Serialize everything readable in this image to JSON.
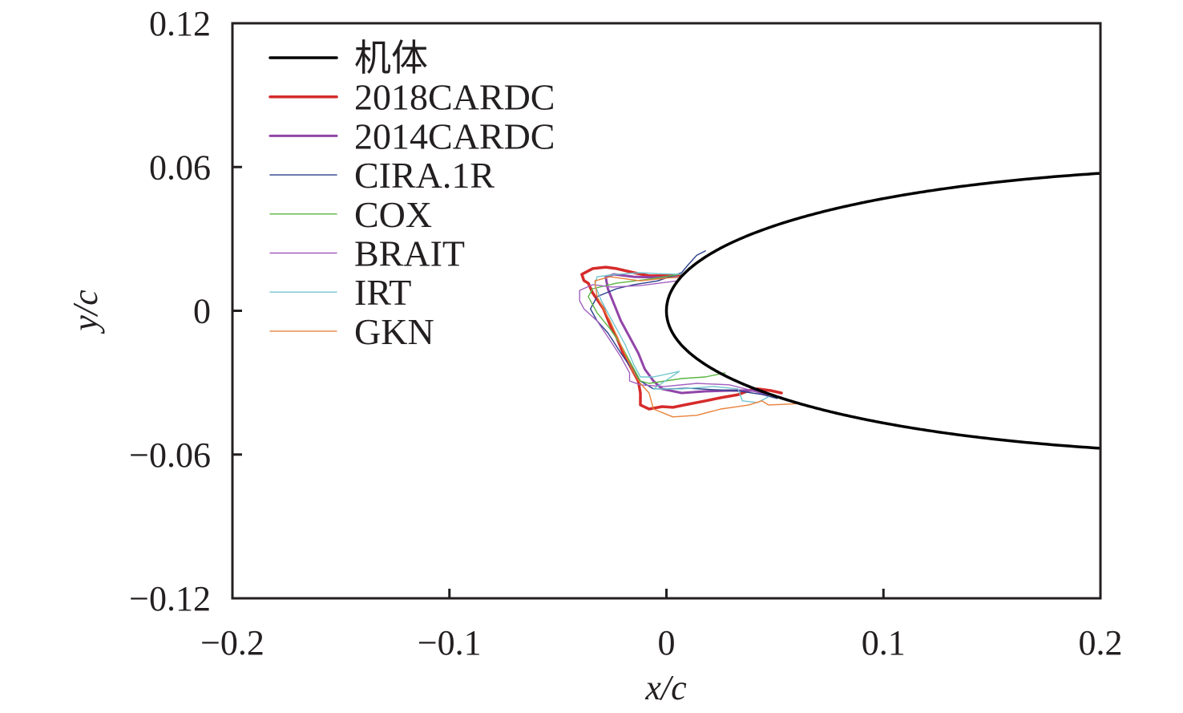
{
  "chart_data": {
    "type": "line",
    "title": "",
    "xlabel": "x/c",
    "ylabel": "y/c",
    "xlim": [
      -0.2,
      0.2
    ],
    "ylim": [
      -0.12,
      0.12
    ],
    "grid": false,
    "legend_position": "top-left",
    "x_ticks": [
      -0.2,
      -0.1,
      0,
      0.1,
      0.2
    ],
    "x_tick_labels": [
      "−0.2",
      "−0.1",
      "0",
      "0.1",
      "0.2"
    ],
    "y_ticks": [
      0.12,
      0.06,
      0,
      -0.06,
      -0.12
    ],
    "y_tick_labels": [
      "0.12",
      "0.06",
      "0",
      "−0.06",
      "−0.12"
    ],
    "series": [
      {
        "name": "机体",
        "color": "#000000",
        "kind": "airfoil-naca0012",
        "x_range": [
          0,
          0.2
        ],
        "points": []
      },
      {
        "name": "2018CARDC",
        "color": "#d62b2b",
        "points": [
          [
            0.007,
            0.0149
          ],
          [
            0.003,
            0.0146
          ],
          [
            -0.008,
            0.0146
          ],
          [
            -0.015,
            0.0159
          ],
          [
            -0.023,
            0.0176
          ],
          [
            -0.028,
            0.0182
          ],
          [
            -0.034,
            0.0176
          ],
          [
            -0.039,
            0.0152
          ],
          [
            -0.038,
            0.0126
          ],
          [
            -0.036,
            0.0115
          ],
          [
            -0.034,
            0.0075
          ],
          [
            -0.029,
            0.0008
          ],
          [
            -0.026,
            -0.0059
          ],
          [
            -0.023,
            -0.0109
          ],
          [
            -0.02,
            -0.0176
          ],
          [
            -0.016,
            -0.0243
          ],
          [
            -0.013,
            -0.0293
          ],
          [
            -0.012,
            -0.0343
          ],
          [
            -0.012,
            -0.0393
          ],
          [
            -0.008,
            -0.041
          ],
          [
            -0.002,
            -0.04
          ],
          [
            0.003,
            -0.0403
          ],
          [
            0.01,
            -0.039
          ],
          [
            0.018,
            -0.0376
          ],
          [
            0.025,
            -0.0363
          ],
          [
            0.033,
            -0.035
          ],
          [
            0.038,
            -0.0333
          ],
          [
            0.042,
            -0.0326
          ],
          [
            0.048,
            -0.0333
          ],
          [
            0.053,
            -0.0343
          ]
        ]
      },
      {
        "name": "2014CARDC",
        "color": "#9146a8",
        "points": [
          [
            0.005,
            0.0142
          ],
          [
            -0.004,
            0.0139
          ],
          [
            -0.015,
            0.0142
          ],
          [
            -0.024,
            0.0152
          ],
          [
            -0.028,
            0.0142
          ],
          [
            -0.027,
            0.0092
          ],
          [
            -0.024,
            0.0025
          ],
          [
            -0.021,
            -0.0042
          ],
          [
            -0.017,
            -0.0109
          ],
          [
            -0.013,
            -0.0176
          ],
          [
            -0.01,
            -0.0243
          ],
          [
            -0.006,
            -0.0293
          ],
          [
            -0.002,
            -0.0326
          ],
          [
            0.007,
            -0.0343
          ],
          [
            0.018,
            -0.0336
          ],
          [
            0.029,
            -0.0333
          ],
          [
            0.04,
            -0.0333
          ],
          [
            0.047,
            -0.0349
          ]
        ]
      },
      {
        "name": "CIRA.1R",
        "color": "#2b3f8c",
        "points": [
          [
            0.018,
            0.025
          ],
          [
            0.014,
            0.0232
          ],
          [
            0.01,
            0.0192
          ],
          [
            0.007,
            0.0159
          ],
          [
            -0.004,
            0.0125
          ],
          [
            -0.015,
            0.0109
          ],
          [
            -0.023,
            0.0092
          ],
          [
            -0.032,
            0.0059
          ],
          [
            -0.035,
            0.0008
          ],
          [
            -0.032,
            -0.0042
          ],
          [
            -0.027,
            -0.0092
          ],
          [
            -0.021,
            -0.0176
          ],
          [
            -0.016,
            -0.0243
          ],
          [
            -0.012,
            -0.0293
          ],
          [
            -0.006,
            -0.0326
          ],
          [
            0.001,
            -0.0326
          ],
          [
            0.01,
            -0.0323
          ],
          [
            0.021,
            -0.0329
          ],
          [
            0.032,
            -0.0333
          ],
          [
            0.044,
            -0.0349
          ],
          [
            0.051,
            -0.0366
          ]
        ]
      },
      {
        "name": "COX",
        "color": "#5bb541",
        "points": [
          [
            0.006,
            0.0152
          ],
          [
            -0.008,
            0.0132
          ],
          [
            -0.023,
            0.0115
          ],
          [
            -0.034,
            0.0092
          ],
          [
            -0.036,
            0.0059
          ],
          [
            -0.032,
            -0.0008
          ],
          [
            -0.026,
            -0.0075
          ],
          [
            -0.021,
            -0.0142
          ],
          [
            -0.016,
            -0.0226
          ],
          [
            -0.012,
            -0.0293
          ],
          [
            -0.008,
            -0.0303
          ],
          [
            0.007,
            -0.0283
          ],
          [
            0.018,
            -0.0276
          ],
          [
            0.027,
            -0.0259
          ]
        ]
      },
      {
        "name": "BRAIT",
        "color": "#a35fc0",
        "points": [
          [
            0.005,
            0.0125
          ],
          [
            -0.012,
            0.0105
          ],
          [
            -0.025,
            0.0099
          ],
          [
            -0.034,
            0.0109
          ],
          [
            -0.04,
            0.0085
          ],
          [
            -0.04,
            0.0042
          ],
          [
            -0.038,
            0.0008
          ],
          [
            -0.032,
            -0.0042
          ],
          [
            -0.027,
            -0.0109
          ],
          [
            -0.021,
            -0.0192
          ],
          [
            -0.017,
            -0.0259
          ],
          [
            -0.017,
            -0.0293
          ],
          [
            -0.012,
            -0.0309
          ],
          [
            -0.001,
            -0.0316
          ],
          [
            0.014,
            -0.0303
          ],
          [
            0.029,
            -0.0309
          ],
          [
            0.044,
            -0.0343
          ],
          [
            0.053,
            -0.0359
          ]
        ]
      },
      {
        "name": "IRT",
        "color": "#72c6cf",
        "points": [
          [
            0.007,
            0.0152
          ],
          [
            -0.004,
            0.0155
          ],
          [
            -0.012,
            0.0159
          ],
          [
            -0.023,
            0.0152
          ],
          [
            -0.032,
            0.0142
          ],
          [
            -0.033,
            0.0109
          ],
          [
            -0.03,
            0.0042
          ],
          [
            -0.025,
            -0.0042
          ],
          [
            -0.019,
            -0.0142
          ],
          [
            -0.015,
            -0.0226
          ],
          [
            -0.012,
            -0.0276
          ],
          [
            -0.006,
            -0.0276
          ],
          [
            0.006,
            -0.0253
          ],
          [
            -0.006,
            -0.0326
          ],
          [
            0.007,
            -0.0326
          ],
          [
            0.022,
            -0.0316
          ],
          [
            0.033,
            -0.0326
          ],
          [
            0.035,
            -0.0376
          ],
          [
            0.042,
            -0.0383
          ],
          [
            0.047,
            -0.0359
          ]
        ]
      },
      {
        "name": "GKN",
        "color": "#e8813a",
        "points": [
          [
            0.006,
            0.0142
          ],
          [
            -0.012,
            0.0125
          ],
          [
            -0.026,
            0.0142
          ],
          [
            -0.033,
            0.0125
          ],
          [
            -0.032,
            0.0059
          ],
          [
            -0.026,
            -0.0042
          ],
          [
            -0.021,
            -0.0142
          ],
          [
            -0.016,
            -0.0243
          ],
          [
            -0.012,
            -0.0303
          ],
          [
            -0.008,
            -0.0343
          ],
          [
            -0.006,
            -0.041
          ],
          [
            0.003,
            -0.0443
          ],
          [
            0.014,
            -0.0436
          ],
          [
            0.025,
            -0.041
          ],
          [
            0.038,
            -0.0393
          ],
          [
            0.044,
            -0.0376
          ],
          [
            0.047,
            -0.0393
          ],
          [
            0.058,
            -0.0389
          ],
          [
            0.062,
            -0.0386
          ]
        ]
      }
    ]
  }
}
